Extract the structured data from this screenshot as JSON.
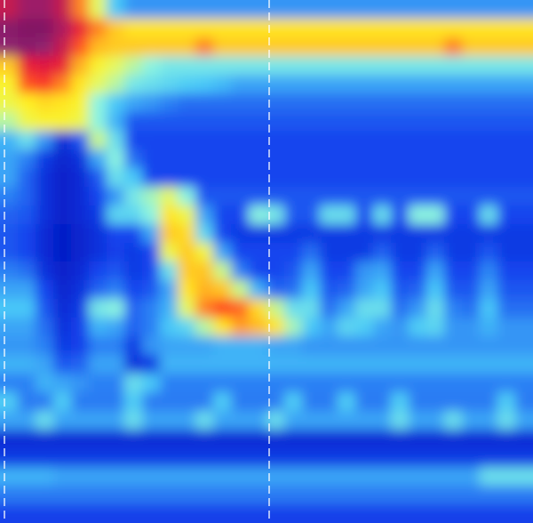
{
  "chart_data": {
    "type": "heatmap",
    "tick_labels": false,
    "color_range": [
      0,
      150
    ],
    "cells": [
      [
        120,
        135,
        135,
        120,
        85,
        55,
        35,
        28,
        28,
        28,
        28,
        28,
        28,
        28,
        28,
        28,
        28,
        28,
        28,
        28,
        28,
        28,
        28,
        28,
        28,
        28,
        28,
        28,
        28,
        28
      ],
      [
        145,
        150,
        150,
        130,
        105,
        85,
        75,
        70,
        70,
        70,
        70,
        70,
        70,
        70,
        70,
        70,
        70,
        70,
        70,
        70,
        70,
        70,
        70,
        70,
        70,
        70,
        70,
        70,
        70,
        70
      ],
      [
        140,
        145,
        140,
        120,
        90,
        78,
        75,
        75,
        75,
        75,
        75,
        85,
        75,
        75,
        75,
        75,
        75,
        75,
        75,
        75,
        75,
        75,
        75,
        75,
        75,
        85,
        75,
        75,
        75,
        75
      ],
      [
        75,
        105,
        110,
        105,
        80,
        65,
        55,
        50,
        45,
        42,
        42,
        42,
        42,
        42,
        42,
        42,
        42,
        42,
        42,
        42,
        42,
        42,
        42,
        42,
        42,
        42,
        42,
        42,
        42,
        42
      ],
      [
        65,
        90,
        95,
        85,
        70,
        55,
        50,
        42,
        40,
        38,
        36,
        35,
        33,
        30,
        30,
        30,
        30,
        30,
        30,
        30,
        30,
        30,
        30,
        30,
        30,
        30,
        30,
        30,
        30,
        30
      ],
      [
        60,
        68,
        72,
        70,
        65,
        45,
        35,
        30,
        28,
        25,
        22,
        22,
        22,
        22,
        22,
        22,
        22,
        22,
        22,
        22,
        22,
        22,
        22,
        22,
        22,
        22,
        22,
        22,
        22,
        22
      ],
      [
        50,
        60,
        65,
        65,
        60,
        45,
        32,
        18,
        18,
        18,
        18,
        18,
        18,
        18,
        18,
        18,
        18,
        18,
        18,
        18,
        18,
        18,
        18,
        18,
        18,
        18,
        18,
        18,
        18,
        18
      ],
      [
        32,
        40,
        28,
        8,
        18,
        52,
        40,
        15,
        15,
        15,
        15,
        15,
        15,
        15,
        15,
        15,
        15,
        15,
        15,
        15,
        15,
        15,
        15,
        15,
        15,
        15,
        15,
        15,
        15,
        15
      ],
      [
        30,
        25,
        12,
        6,
        10,
        30,
        45,
        22,
        15,
        15,
        15,
        15,
        15,
        15,
        15,
        15,
        15,
        15,
        15,
        15,
        15,
        15,
        15,
        15,
        15,
        15,
        15,
        15,
        15,
        15
      ],
      [
        30,
        20,
        10,
        5,
        8,
        18,
        40,
        35,
        15,
        15,
        15,
        15,
        15,
        15,
        15,
        15,
        15,
        15,
        15,
        15,
        15,
        15,
        15,
        15,
        15,
        15,
        15,
        15,
        15,
        15
      ],
      [
        25,
        20,
        10,
        5,
        8,
        15,
        28,
        42,
        48,
        55,
        45,
        18,
        18,
        18,
        18,
        18,
        18,
        18,
        18,
        18,
        18,
        18,
        18,
        18,
        18,
        18,
        18,
        18,
        18,
        18
      ],
      [
        20,
        18,
        10,
        5,
        8,
        12,
        38,
        38,
        45,
        70,
        60,
        30,
        15,
        15,
        45,
        42,
        18,
        18,
        40,
        40,
        15,
        40,
        15,
        45,
        45,
        15,
        15,
        40,
        15,
        15
      ],
      [
        18,
        15,
        8,
        4,
        6,
        10,
        15,
        15,
        30,
        75,
        72,
        38,
        15,
        12,
        12,
        12,
        12,
        12,
        12,
        12,
        12,
        12,
        12,
        12,
        12,
        12,
        12,
        12,
        12,
        12
      ],
      [
        18,
        15,
        8,
        4,
        6,
        10,
        14,
        12,
        15,
        60,
        75,
        62,
        30,
        15,
        15,
        15,
        15,
        22,
        12,
        12,
        12,
        20,
        12,
        12,
        20,
        12,
        12,
        18,
        12,
        12
      ],
      [
        25,
        22,
        10,
        5,
        8,
        15,
        18,
        12,
        15,
        40,
        75,
        76,
        52,
        25,
        15,
        15,
        18,
        30,
        15,
        15,
        28,
        30,
        15,
        15,
        30,
        15,
        15,
        26,
        15,
        15
      ],
      [
        30,
        30,
        15,
        6,
        10,
        20,
        25,
        15,
        18,
        30,
        70,
        80,
        76,
        52,
        32,
        20,
        22,
        35,
        18,
        20,
        30,
        35,
        18,
        20,
        35,
        18,
        18,
        30,
        18,
        18
      ],
      [
        35,
        35,
        18,
        8,
        12,
        42,
        45,
        20,
        25,
        32,
        55,
        85,
        92,
        88,
        72,
        52,
        40,
        40,
        22,
        30,
        40,
        40,
        22,
        28,
        40,
        25,
        22,
        35,
        22,
        22
      ],
      [
        30,
        30,
        22,
        10,
        14,
        32,
        30,
        20,
        25,
        35,
        38,
        50,
        70,
        82,
        78,
        70,
        48,
        35,
        30,
        38,
        36,
        30,
        28,
        36,
        38,
        28,
        28,
        32,
        28,
        28
      ],
      [
        28,
        28,
        25,
        12,
        14,
        25,
        25,
        12,
        28,
        30,
        30,
        30,
        32,
        32,
        32,
        30,
        30,
        28,
        28,
        28,
        28,
        28,
        28,
        28,
        28,
        28,
        28,
        28,
        28,
        28
      ],
      [
        32,
        32,
        30,
        18,
        20,
        30,
        30,
        10,
        12,
        32,
        32,
        32,
        32,
        32,
        32,
        32,
        32,
        32,
        32,
        32,
        32,
        32,
        32,
        32,
        32,
        32,
        32,
        32,
        32,
        32
      ],
      [
        25,
        25,
        32,
        30,
        28,
        25,
        25,
        40,
        35,
        25,
        25,
        25,
        25,
        25,
        25,
        25,
        25,
        25,
        25,
        25,
        25,
        25,
        25,
        25,
        25,
        25,
        25,
        25,
        25,
        25
      ],
      [
        36,
        24,
        24,
        36,
        24,
        24,
        24,
        36,
        24,
        24,
        24,
        24,
        36,
        24,
        24,
        24,
        36,
        24,
        24,
        36,
        24,
        24,
        36,
        24,
        24,
        24,
        24,
        24,
        36,
        24
      ],
      [
        30,
        30,
        40,
        30,
        30,
        30,
        30,
        40,
        30,
        30,
        30,
        40,
        30,
        30,
        30,
        40,
        30,
        30,
        30,
        30,
        30,
        30,
        40,
        30,
        30,
        40,
        30,
        30,
        40,
        30
      ],
      [
        8,
        8,
        8,
        8,
        8,
        8,
        8,
        8,
        8,
        8,
        8,
        8,
        8,
        8,
        8,
        8,
        8,
        8,
        8,
        8,
        8,
        8,
        8,
        8,
        8,
        8,
        8,
        8,
        8,
        8
      ],
      [
        12,
        12,
        12,
        12,
        12,
        12,
        12,
        12,
        12,
        12,
        12,
        12,
        12,
        12,
        12,
        12,
        12,
        12,
        12,
        12,
        12,
        12,
        12,
        12,
        12,
        12,
        12,
        12,
        12,
        12
      ],
      [
        32,
        32,
        32,
        30,
        30,
        30,
        30,
        30,
        30,
        30,
        30,
        30,
        30,
        30,
        30,
        30,
        30,
        30,
        30,
        30,
        30,
        30,
        30,
        30,
        30,
        30,
        30,
        40,
        40,
        40
      ],
      [
        24,
        24,
        24,
        24,
        24,
        24,
        24,
        24,
        24,
        24,
        24,
        24,
        24,
        24,
        24,
        24,
        24,
        24,
        24,
        24,
        24,
        24,
        24,
        24,
        24,
        24,
        24,
        24,
        24,
        24
      ],
      [
        14,
        14,
        14,
        14,
        14,
        14,
        14,
        14,
        14,
        14,
        14,
        14,
        14,
        14,
        14,
        14,
        14,
        14,
        14,
        14,
        14,
        14,
        14,
        14,
        14,
        14,
        14,
        14,
        14,
        14
      ]
    ]
  }
}
